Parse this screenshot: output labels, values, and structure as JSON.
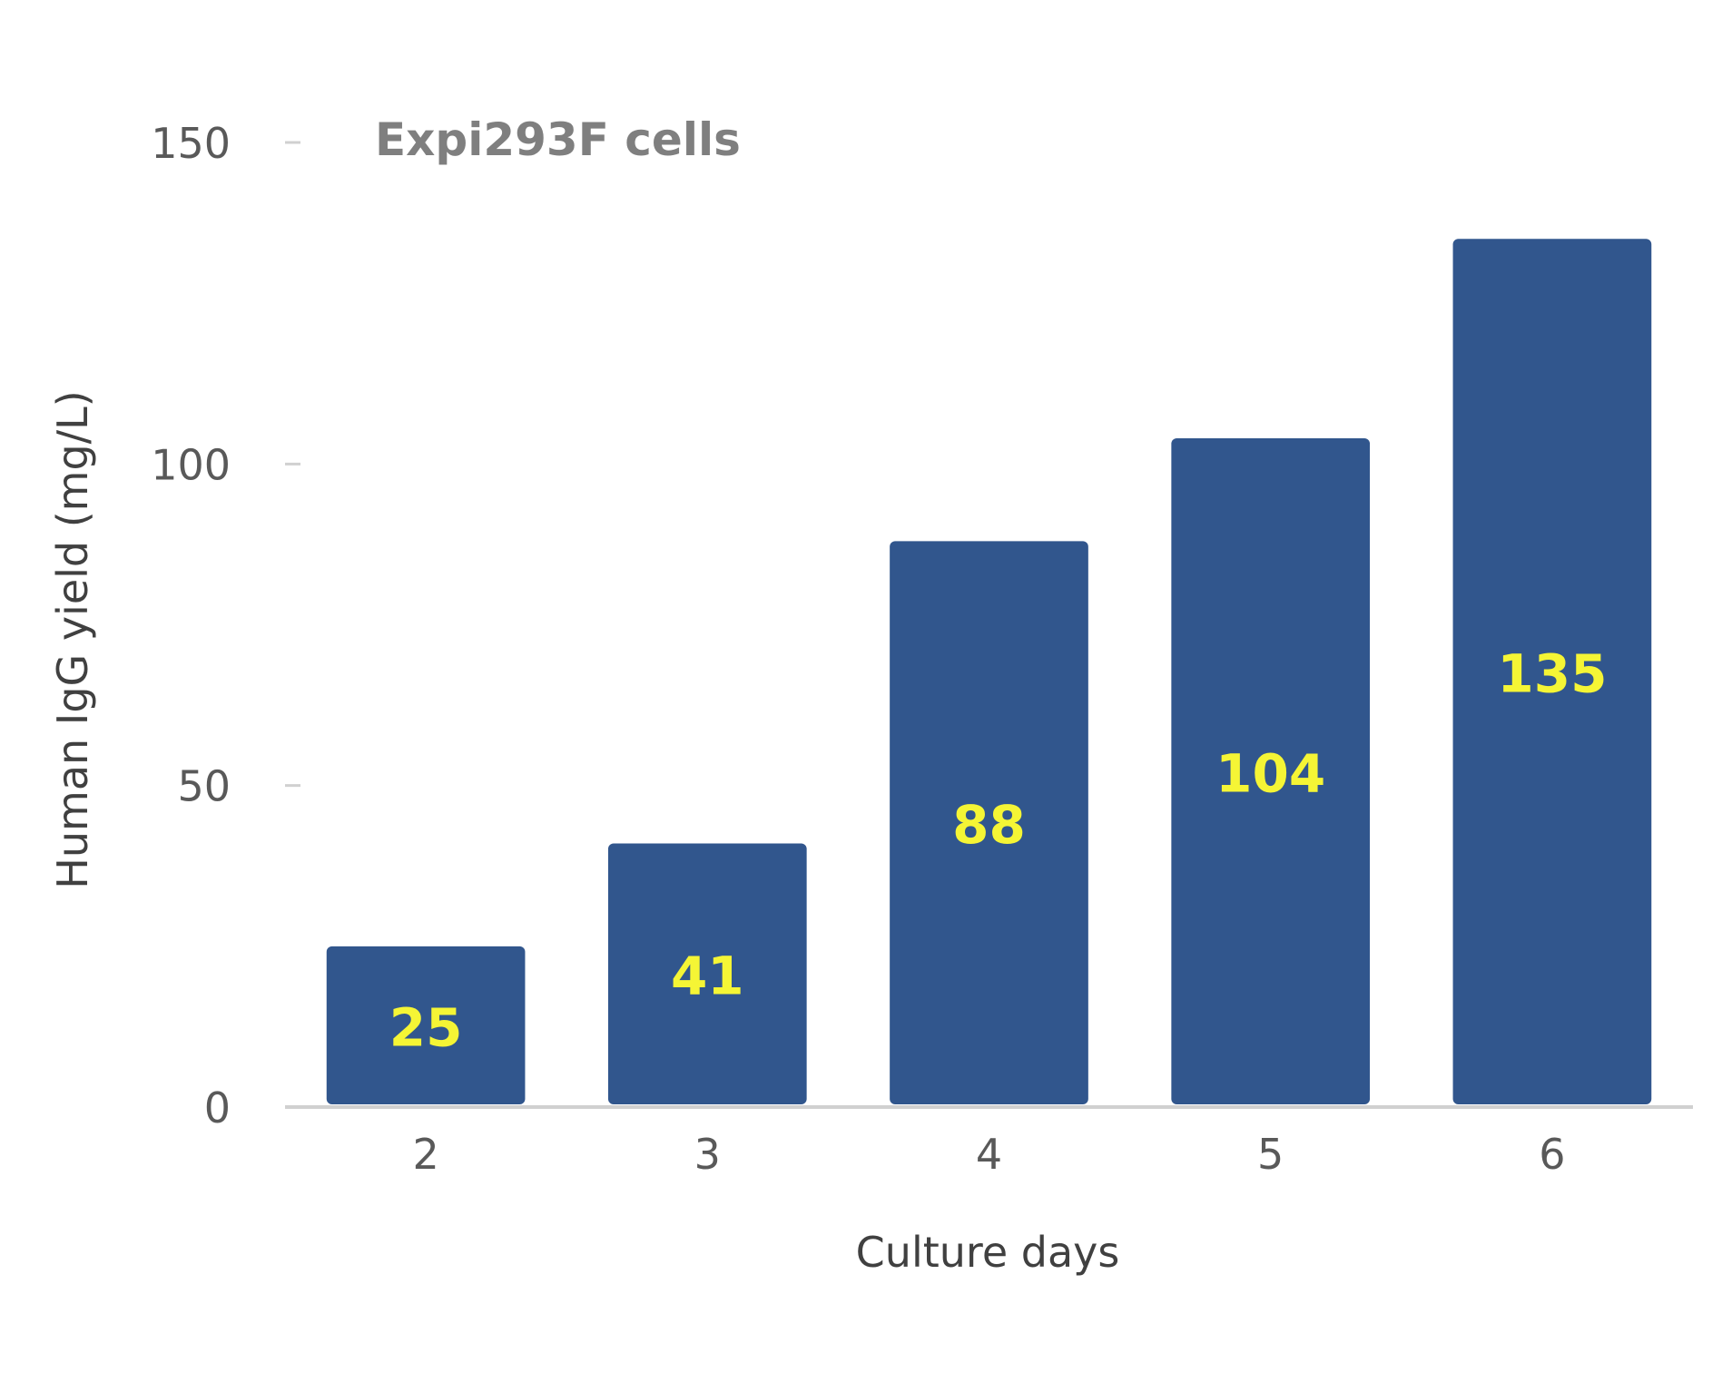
{
  "chart_data": {
    "type": "bar",
    "title": "Expi293F cells",
    "xlabel": "Culture days",
    "ylabel": "Human IgG yield (mg/L)",
    "categories": [
      "2",
      "3",
      "4",
      "5",
      "6"
    ],
    "values": [
      25,
      41,
      88,
      104,
      135
    ],
    "data_labels": [
      "25",
      "41",
      "88",
      "104",
      "135"
    ],
    "ylim": [
      0,
      150
    ],
    "yticks": [
      0,
      50,
      100,
      150
    ],
    "ytick_labels": [
      "0",
      "50",
      "100",
      "150"
    ],
    "grid": false,
    "legend": "none",
    "colors": {
      "bar": "#31568d",
      "data_label": "#f5f535",
      "axis_line": "#d0d0d0"
    }
  }
}
